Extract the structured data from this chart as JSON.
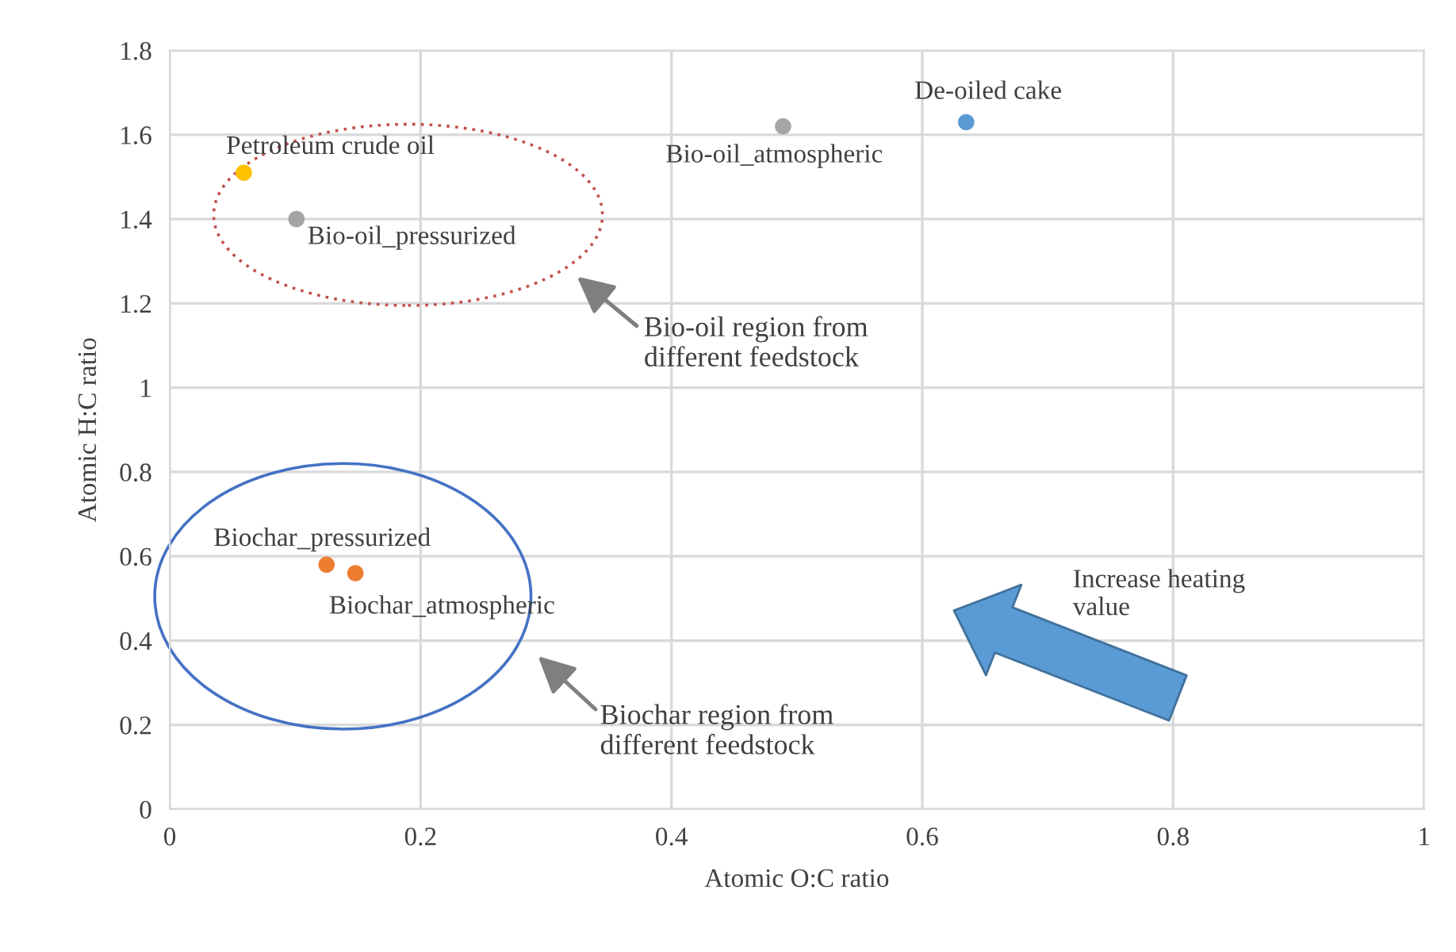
{
  "chart_data": {
    "type": "scatter",
    "xlabel": "Atomic O:C ratio",
    "ylabel": "Atomic H:C ratio",
    "xlim": [
      0,
      1
    ],
    "ylim": [
      0,
      1.8
    ],
    "xticks": [
      0,
      0.2,
      0.4,
      0.6,
      0.8,
      1
    ],
    "yticks": [
      0,
      0.2,
      0.4,
      0.6,
      0.8,
      1,
      1.2,
      1.4,
      1.6,
      1.8
    ],
    "grid": true,
    "marker": "circle",
    "legend": false,
    "series": [
      {
        "name": "Petroleum crude oil",
        "color": "#ffc000",
        "x": [
          0.059
        ],
        "values": [
          1.51
        ]
      },
      {
        "name": "Bio-oil_pressurized",
        "color": "#a5a5a5",
        "x": [
          0.101
        ],
        "values": [
          1.4
        ]
      },
      {
        "name": "Bio-oil_atmospheric",
        "color": "#a5a5a5",
        "x": [
          0.489
        ],
        "values": [
          1.62
        ]
      },
      {
        "name": "De-oiled cake",
        "color": "#5b9bd5",
        "x": [
          0.635
        ],
        "values": [
          1.63
        ]
      },
      {
        "name": "Biochar_pressurized",
        "color": "#ed7d31",
        "x": [
          0.125
        ],
        "values": [
          0.58
        ]
      },
      {
        "name": "Biochar_atmospheric",
        "color": "#ed7d31",
        "x": [
          0.148
        ],
        "values": [
          0.56
        ]
      }
    ],
    "annotations": [
      "Bio-oil region from\ndifferent feedstock",
      "Biochar region from\ndifferent feedstock",
      "Increase heating\nvalue"
    ]
  }
}
